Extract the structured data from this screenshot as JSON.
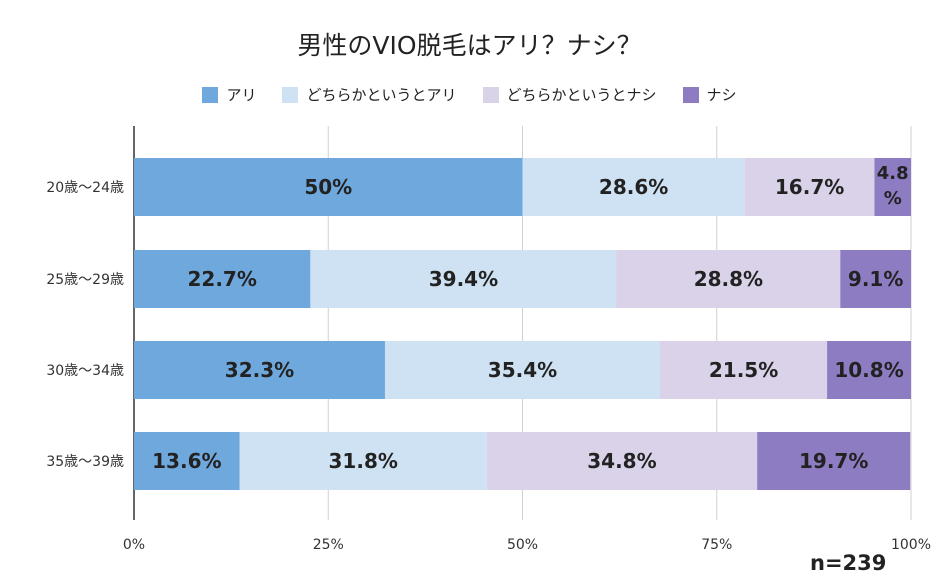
{
  "chart_data": {
    "type": "bar",
    "orientation": "horizontal",
    "stacked": true,
    "title": "男性のVIO脱毛はアリ？ナシ？",
    "categories": [
      "20歳～24歳",
      "25歳～29歳",
      "30歳～34歳",
      "35歳～39歳"
    ],
    "series": [
      {
        "name": "アリ",
        "color": "#6fa8dc",
        "values": [
          50,
          22.7,
          32.3,
          13.6
        ],
        "labels": [
          "50%",
          "22.7%",
          "32.3%",
          "13.6%"
        ]
      },
      {
        "name": "どちらかというとアリ",
        "color": "#cfe2f3",
        "values": [
          28.6,
          39.4,
          35.4,
          31.8
        ],
        "labels": [
          "28.6%",
          "39.4%",
          "35.4%",
          "31.8%"
        ]
      },
      {
        "name": "どちらかというとナシ",
        "color": "#d9d2e9",
        "values": [
          16.7,
          28.8,
          21.5,
          34.8
        ],
        "labels": [
          "16.7%",
          "28.8%",
          "21.5%",
          "34.8%"
        ]
      },
      {
        "name": "ナシ",
        "color": "#8e7cc3",
        "values": [
          4.8,
          9.1,
          10.8,
          19.7
        ],
        "labels": [
          "4.8%",
          "9.1%",
          "10.8%",
          "19.7%"
        ]
      }
    ],
    "xlim": [
      0,
      100
    ],
    "x_ticks": [
      "0%",
      "25%",
      "50%",
      "75%",
      "100%"
    ],
    "grid": true,
    "legend_position": "top",
    "note": "n=239"
  }
}
